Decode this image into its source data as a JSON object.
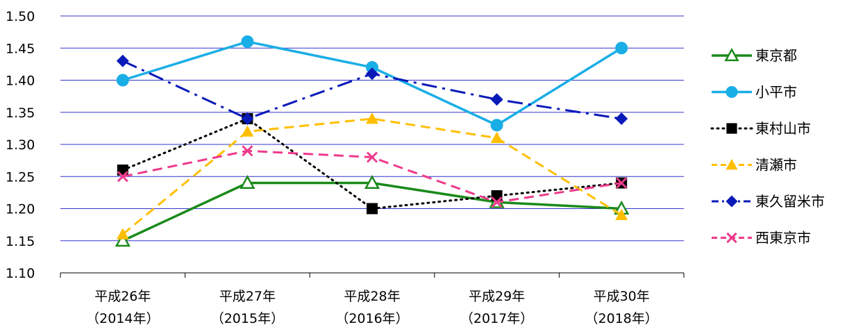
{
  "chart_data": {
    "type": "line",
    "categories": [
      {
        "line1": "平成26年",
        "line2": "（2014年）"
      },
      {
        "line1": "平成27年",
        "line2": "（2015年）"
      },
      {
        "line1": "平成28年",
        "line2": "（2016年）"
      },
      {
        "line1": "平成29年",
        "line2": "（2017年）"
      },
      {
        "line1": "平成30年",
        "line2": "（2018年）"
      }
    ],
    "ylim": [
      1.1,
      1.5
    ],
    "yticks": [
      "1.10",
      "1.15",
      "1.20",
      "1.25",
      "1.30",
      "1.35",
      "1.40",
      "1.45",
      "1.50"
    ],
    "grid": true,
    "gridline_color": "#3333cc",
    "legend_position": "right",
    "series": [
      {
        "name": "東京都",
        "values": [
          1.15,
          1.24,
          1.24,
          1.21,
          1.2
        ],
        "color": "#1a8a1a",
        "dash": "solid",
        "marker": "triangle-open"
      },
      {
        "name": "小平市",
        "values": [
          1.4,
          1.46,
          1.42,
          1.33,
          1.45
        ],
        "color": "#1aaee6",
        "dash": "solid",
        "marker": "circle"
      },
      {
        "name": "東村山市",
        "values": [
          1.26,
          1.34,
          1.2,
          1.22,
          1.24
        ],
        "color": "#000000",
        "dash": "dot",
        "marker": "square"
      },
      {
        "name": "清瀬市",
        "values": [
          1.16,
          1.32,
          1.34,
          1.31,
          1.19
        ],
        "color": "#ffbf00",
        "dash": "dash",
        "marker": "triangle"
      },
      {
        "name": "東久留米市",
        "values": [
          1.43,
          1.34,
          1.41,
          1.37,
          1.34
        ],
        "color": "#0a1ab8",
        "dash": "dashdot",
        "marker": "diamond"
      },
      {
        "name": "西東京市",
        "values": [
          1.25,
          1.29,
          1.28,
          1.21,
          1.24
        ],
        "color": "#ee3a8c",
        "dash": "dash",
        "marker": "x"
      }
    ]
  }
}
